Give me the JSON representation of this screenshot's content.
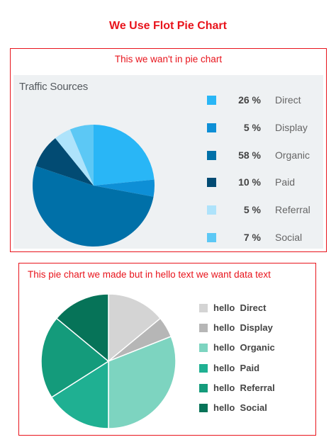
{
  "heading": "We Use Flot Pie Chart",
  "frame1": {
    "title": "This we wan't in pie chart"
  },
  "frame2": {
    "title": "This pie chart we made but in hello text we want data text"
  },
  "chart_data": [
    {
      "type": "pie",
      "title": "Traffic Sources",
      "categories": [
        "Direct",
        "Display",
        "Organic",
        "Paid",
        "Referral",
        "Social"
      ],
      "values": [
        26,
        5,
        58,
        10,
        5,
        7
      ],
      "percent_labels": [
        "26 %",
        "5 %",
        "58 %",
        "10 %",
        "5 %",
        "7 %"
      ],
      "colors": [
        "#29b6f6",
        "#0e8fd6",
        "#0070a8",
        "#024b73",
        "#aee3fb",
        "#5cc8f5"
      ],
      "legend_position": "right"
    },
    {
      "type": "pie",
      "title": "",
      "categories": [
        "Direct",
        "Display",
        "Organic",
        "Paid",
        "Referral",
        "Social"
      ],
      "legend_prefix": "hello",
      "values": [
        14,
        5,
        31,
        16,
        20,
        14
      ],
      "colors": [
        "#d4d4d4",
        "#b6b6b6",
        "#7dd4c0",
        "#1fb092",
        "#149b7b",
        "#067358"
      ],
      "legend_position": "right"
    }
  ]
}
